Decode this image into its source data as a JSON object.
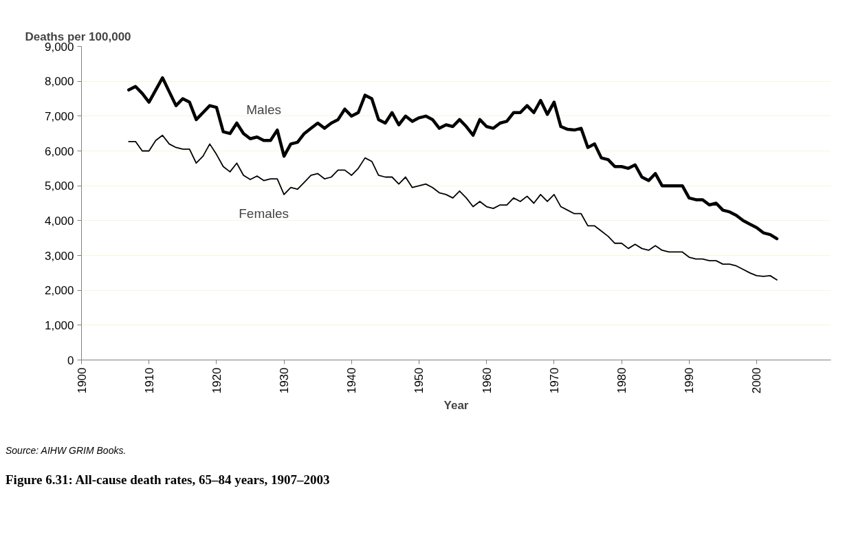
{
  "chart_data": {
    "type": "line",
    "title": "Figure 6.31: All-cause death rates, 65–84 years, 1907–2003",
    "xlabel": "Year",
    "ylabel": "Deaths per 100,000",
    "annotations": [
      "Source: AIHW GRIM Books."
    ],
    "x": [
      1907,
      1908,
      1909,
      1910,
      1911,
      1912,
      1913,
      1914,
      1915,
      1916,
      1917,
      1918,
      1919,
      1920,
      1921,
      1922,
      1923,
      1924,
      1925,
      1926,
      1927,
      1928,
      1929,
      1930,
      1931,
      1932,
      1933,
      1934,
      1935,
      1936,
      1937,
      1938,
      1939,
      1940,
      1941,
      1942,
      1943,
      1944,
      1945,
      1946,
      1947,
      1948,
      1949,
      1950,
      1951,
      1952,
      1953,
      1954,
      1955,
      1956,
      1957,
      1958,
      1959,
      1960,
      1961,
      1962,
      1963,
      1964,
      1965,
      1966,
      1967,
      1968,
      1969,
      1970,
      1971,
      1972,
      1973,
      1974,
      1975,
      1976,
      1977,
      1978,
      1979,
      1980,
      1981,
      1982,
      1983,
      1984,
      1985,
      1986,
      1987,
      1988,
      1989,
      1990,
      1991,
      1992,
      1993,
      1994,
      1995,
      1996,
      1997,
      1998,
      1999,
      2000,
      2001,
      2002,
      2003
    ],
    "series": [
      {
        "name": "Males",
        "color": "#000000",
        "values": [
          7750,
          7850,
          7650,
          7400,
          7750,
          8100,
          7700,
          7300,
          7500,
          7400,
          6900,
          7100,
          7300,
          7250,
          6550,
          6500,
          6800,
          6500,
          6350,
          6400,
          6300,
          6300,
          6600,
          5850,
          6200,
          6250,
          6500,
          6650,
          6800,
          6650,
          6800,
          6900,
          7200,
          7000,
          7100,
          7600,
          7500,
          6900,
          6800,
          7100,
          6750,
          7000,
          6850,
          6950,
          7000,
          6900,
          6650,
          6750,
          6700,
          6900,
          6700,
          6450,
          6900,
          6700,
          6650,
          6800,
          6850,
          7100,
          7100,
          7300,
          7100,
          7450,
          7050,
          7400,
          6700,
          6620,
          6600,
          6650,
          6100,
          6200,
          5800,
          5750,
          5550,
          5550,
          5500,
          5600,
          5250,
          5150,
          5350,
          5000,
          5000,
          5000,
          5000,
          4650,
          4600,
          4600,
          4450,
          4500,
          4300,
          4250,
          4150,
          4000,
          3900,
          3800,
          3650,
          3600,
          3480
        ]
      },
      {
        "name": "Females",
        "color": "#000000",
        "values": [
          6270,
          6270,
          6000,
          6000,
          6300,
          6450,
          6200,
          6100,
          6050,
          6050,
          5650,
          5850,
          6200,
          5900,
          5550,
          5400,
          5650,
          5300,
          5180,
          5280,
          5150,
          5200,
          5200,
          4750,
          4950,
          4900,
          5100,
          5300,
          5350,
          5200,
          5250,
          5450,
          5450,
          5300,
          5500,
          5800,
          5700,
          5300,
          5250,
          5250,
          5050,
          5250,
          4950,
          5000,
          5050,
          4950,
          4800,
          4750,
          4650,
          4850,
          4650,
          4400,
          4550,
          4400,
          4350,
          4450,
          4450,
          4650,
          4550,
          4700,
          4500,
          4750,
          4550,
          4750,
          4400,
          4300,
          4200,
          4200,
          3850,
          3850,
          3700,
          3550,
          3350,
          3350,
          3200,
          3320,
          3200,
          3150,
          3280,
          3150,
          3100,
          3100,
          3100,
          2950,
          2900,
          2900,
          2850,
          2850,
          2750,
          2750,
          2700,
          2600,
          2500,
          2420,
          2400,
          2420,
          2300
        ]
      }
    ],
    "xlim": [
      1900,
      2011
    ],
    "xticks": [
      1900,
      1910,
      1920,
      1930,
      1940,
      1950,
      1960,
      1970,
      1980,
      1990,
      2000
    ],
    "ylim": [
      0,
      9000
    ],
    "yticks": [
      {
        "value": 0,
        "label": "0"
      },
      {
        "value": 1000,
        "label": "1,000"
      },
      {
        "value": 2000,
        "label": "2,000"
      },
      {
        "value": 3000,
        "label": "3,000"
      },
      {
        "value": 4000,
        "label": "4,000"
      },
      {
        "value": 5000,
        "label": "5,000"
      },
      {
        "value": 6000,
        "label": "6,000"
      },
      {
        "value": 7000,
        "label": "7,000"
      },
      {
        "value": 8000,
        "label": "8,000"
      },
      {
        "value": 9000,
        "label": "9,000"
      }
    ],
    "grid": "y",
    "legend": false,
    "marker": "none",
    "line_style": "solid"
  }
}
